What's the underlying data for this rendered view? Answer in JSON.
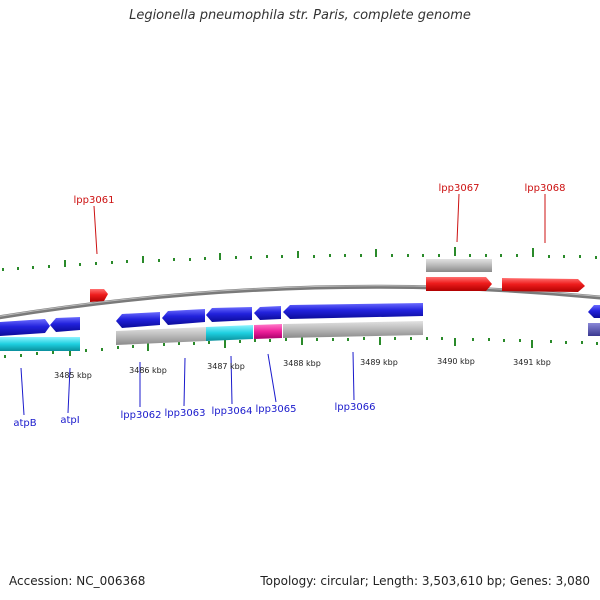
{
  "title": "Legionella pneumophila str. Paris, complete genome",
  "footer": {
    "accession": "Accession: NC_006368",
    "summary": "Topology: circular; Length: 3,503,610 bp; Genes: 3,080"
  },
  "scale_labels": [
    "3485 kbp",
    "3486 kbp",
    "3487 kbp",
    "3488 kbp",
    "3489 kbp",
    "3490 kbp",
    "3491 kbp"
  ],
  "gene_labels_top": [
    "lpp3061",
    "lpp3067",
    "lpp3068"
  ],
  "gene_labels_bottom": [
    "atpB",
    "atpI",
    "lpp3062",
    "lpp3063",
    "lpp3064",
    "lpp3065",
    "lpp3066"
  ],
  "colors": {
    "forward": "#ee1c1c",
    "reverse": "#2222dd",
    "rna_cyan": "#1ecfe0",
    "magenta": "#ee1f9a",
    "grey": "#b8b8b8",
    "ticks": "#2a8a2a",
    "label_red": "#cc1111",
    "label_blue": "#1a1acc"
  }
}
